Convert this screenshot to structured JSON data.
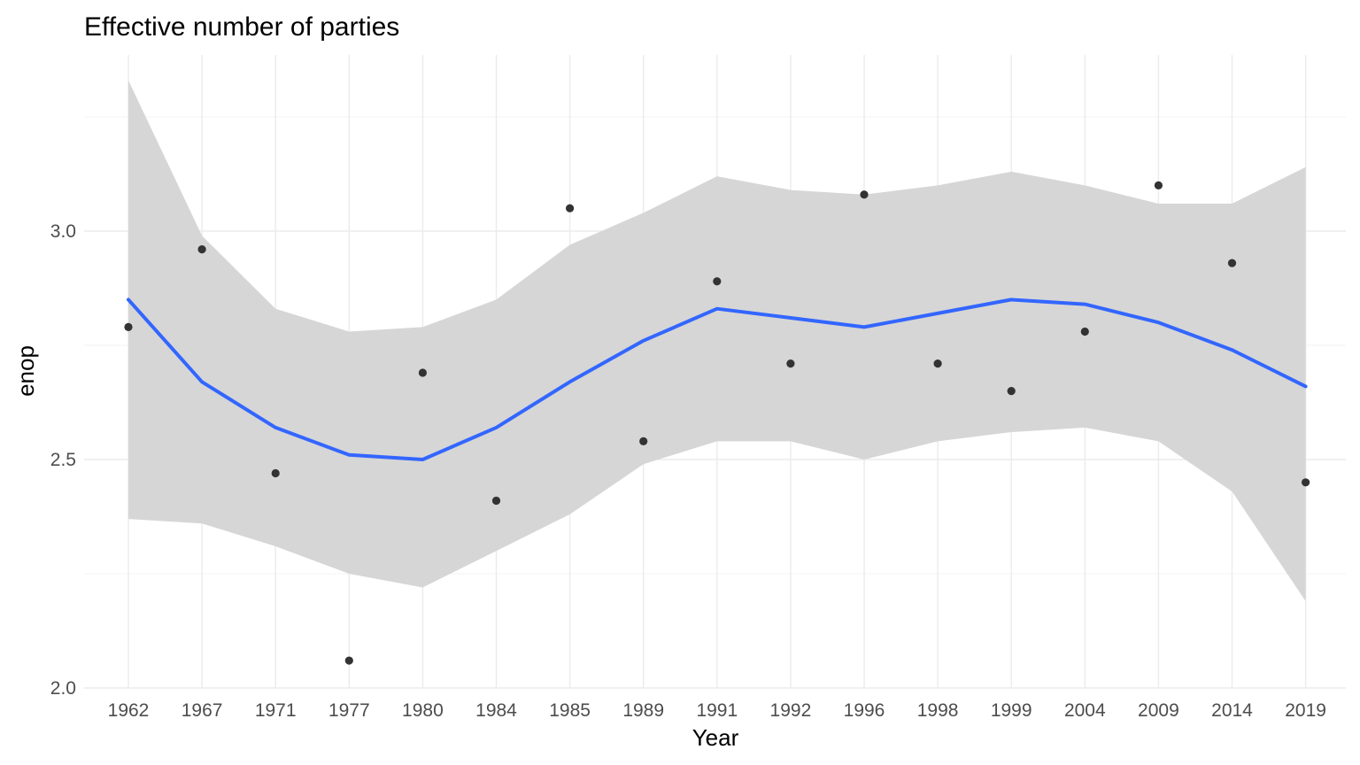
{
  "chart_data": {
    "type": "scatter",
    "title": "Effective number of parties",
    "xlabel": "Year",
    "ylabel": "enop",
    "categories": [
      "1962",
      "1967",
      "1971",
      "1977",
      "1980",
      "1984",
      "1985",
      "1989",
      "1991",
      "1992",
      "1996",
      "1998",
      "1999",
      "2004",
      "2009",
      "2014",
      "2019"
    ],
    "y_ticks": [
      "2.0",
      "2.5",
      "3.0"
    ],
    "ylim": [
      2.0,
      3.33
    ],
    "grid": true,
    "legend": "none",
    "series": [
      {
        "kind": "points",
        "color": "#333333",
        "values": [
          2.79,
          2.96,
          2.47,
          2.06,
          2.69,
          2.41,
          3.05,
          2.54,
          2.89,
          2.71,
          3.08,
          2.71,
          2.65,
          2.78,
          3.1,
          2.93,
          2.45
        ]
      },
      {
        "kind": "smooth",
        "color": "#3366FF",
        "values": [
          2.85,
          2.67,
          2.57,
          2.51,
          2.5,
          2.57,
          2.67,
          2.76,
          2.83,
          2.81,
          2.79,
          2.82,
          2.85,
          2.84,
          2.8,
          2.74,
          2.66
        ],
        "ci_low": [
          2.37,
          2.36,
          2.31,
          2.25,
          2.22,
          2.3,
          2.38,
          2.49,
          2.54,
          2.54,
          2.5,
          2.54,
          2.56,
          2.57,
          2.54,
          2.43,
          2.19
        ],
        "ci_high": [
          3.33,
          2.99,
          2.83,
          2.78,
          2.79,
          2.85,
          2.97,
          3.04,
          3.12,
          3.09,
          3.08,
          3.1,
          3.13,
          3.1,
          3.06,
          3.06,
          3.14
        ],
        "ci_color": "#d6d6d6"
      }
    ]
  }
}
